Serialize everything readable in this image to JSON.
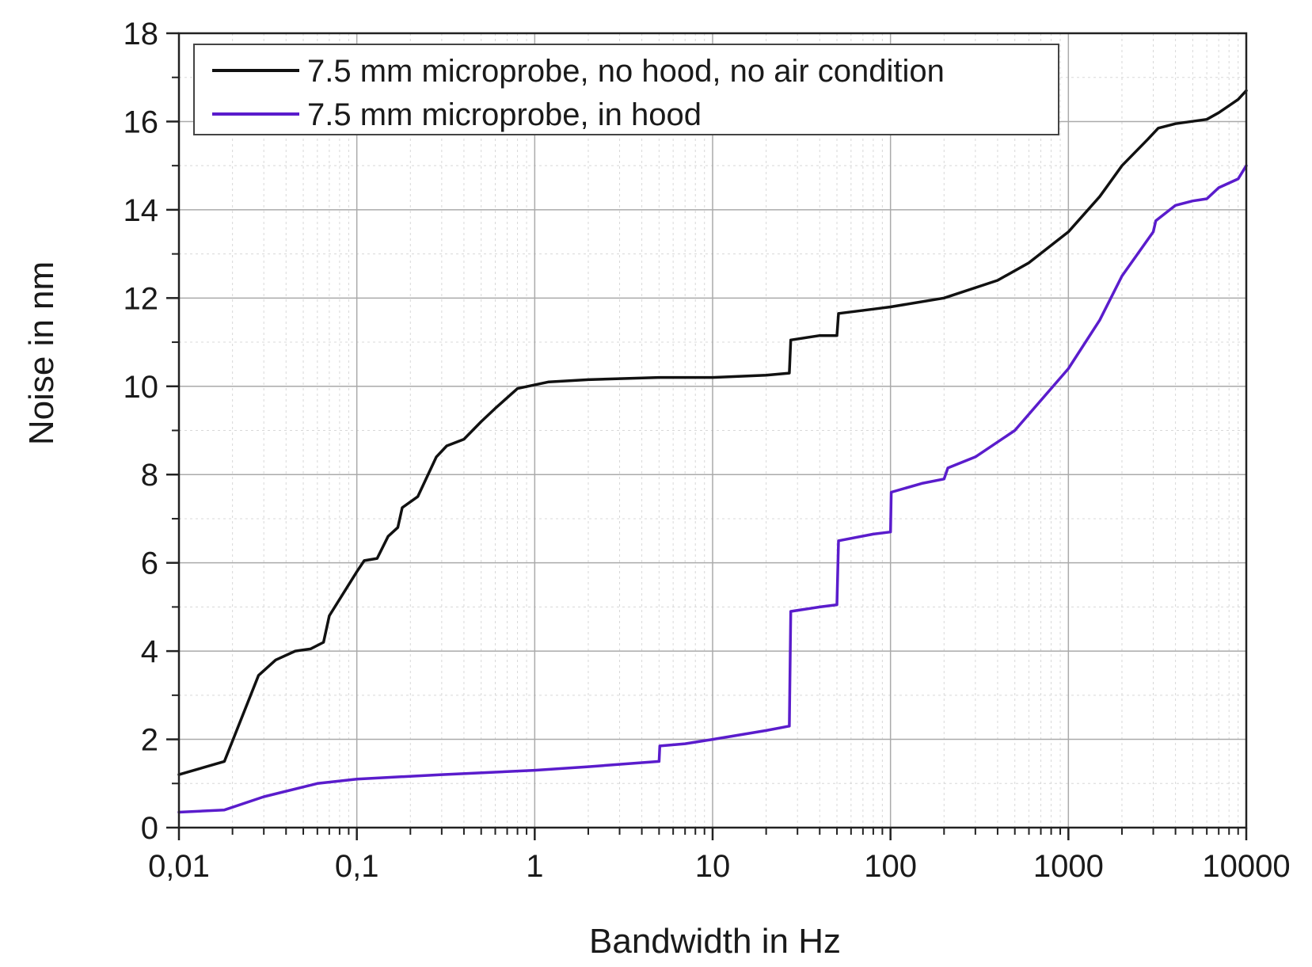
{
  "chart_data": {
    "type": "line",
    "x_scale": "log",
    "xlabel": "Bandwidth in Hz",
    "ylabel": "Noise in nm",
    "xlim": [
      0.01,
      10000
    ],
    "ylim": [
      0,
      18
    ],
    "x_ticks": [
      {
        "value": 0.01,
        "label": "0,01"
      },
      {
        "value": 0.1,
        "label": "0,1"
      },
      {
        "value": 1,
        "label": "1"
      },
      {
        "value": 10,
        "label": "10"
      },
      {
        "value": 100,
        "label": "100"
      },
      {
        "value": 1000,
        "label": "1000"
      },
      {
        "value": 10000,
        "label": "10000"
      }
    ],
    "y_ticks": [
      {
        "value": 0,
        "label": "0"
      },
      {
        "value": 2,
        "label": "2"
      },
      {
        "value": 4,
        "label": "4"
      },
      {
        "value": 6,
        "label": "6"
      },
      {
        "value": 8,
        "label": "8"
      },
      {
        "value": 10,
        "label": "10"
      },
      {
        "value": 12,
        "label": "12"
      },
      {
        "value": 14,
        "label": "14"
      },
      {
        "value": 16,
        "label": "16"
      },
      {
        "value": 18,
        "label": "18"
      }
    ],
    "grid": true,
    "legend_position": "top-left",
    "series": [
      {
        "name": "7.5 mm microprobe, no hood, no air condition",
        "color": "#111111",
        "points": [
          [
            0.01,
            1.2
          ],
          [
            0.018,
            1.5
          ],
          [
            0.028,
            3.45
          ],
          [
            0.035,
            3.8
          ],
          [
            0.045,
            4.0
          ],
          [
            0.055,
            4.05
          ],
          [
            0.065,
            4.2
          ],
          [
            0.07,
            4.8
          ],
          [
            0.1,
            5.8
          ],
          [
            0.11,
            6.05
          ],
          [
            0.13,
            6.1
          ],
          [
            0.15,
            6.6
          ],
          [
            0.17,
            6.8
          ],
          [
            0.18,
            7.25
          ],
          [
            0.22,
            7.5
          ],
          [
            0.28,
            8.4
          ],
          [
            0.32,
            8.65
          ],
          [
            0.4,
            8.8
          ],
          [
            0.5,
            9.2
          ],
          [
            0.6,
            9.5
          ],
          [
            0.8,
            9.95
          ],
          [
            1.2,
            10.1
          ],
          [
            2,
            10.15
          ],
          [
            5,
            10.2
          ],
          [
            10,
            10.2
          ],
          [
            20,
            10.25
          ],
          [
            27,
            10.3
          ],
          [
            27.5,
            11.05
          ],
          [
            40,
            11.15
          ],
          [
            50,
            11.15
          ],
          [
            51,
            11.65
          ],
          [
            80,
            11.75
          ],
          [
            100,
            11.8
          ],
          [
            200,
            12.0
          ],
          [
            400,
            12.4
          ],
          [
            600,
            12.8
          ],
          [
            1000,
            13.5
          ],
          [
            1500,
            14.3
          ],
          [
            2000,
            15.0
          ],
          [
            2800,
            15.6
          ],
          [
            3200,
            15.85
          ],
          [
            4000,
            15.95
          ],
          [
            6000,
            16.05
          ],
          [
            7000,
            16.2
          ],
          [
            9000,
            16.5
          ],
          [
            10000,
            16.7
          ]
        ]
      },
      {
        "name": "7.5 mm microprobe, in hood",
        "color": "#5a1ccc",
        "points": [
          [
            0.01,
            0.35
          ],
          [
            0.018,
            0.4
          ],
          [
            0.03,
            0.7
          ],
          [
            0.06,
            1.0
          ],
          [
            0.1,
            1.1
          ],
          [
            0.3,
            1.2
          ],
          [
            1,
            1.3
          ],
          [
            2,
            1.38
          ],
          [
            5,
            1.5
          ],
          [
            5.05,
            1.85
          ],
          [
            7,
            1.9
          ],
          [
            10,
            2.0
          ],
          [
            20,
            2.2
          ],
          [
            27,
            2.3
          ],
          [
            27.5,
            4.9
          ],
          [
            40,
            5.0
          ],
          [
            50,
            5.05
          ],
          [
            51,
            6.5
          ],
          [
            80,
            6.65
          ],
          [
            100,
            6.7
          ],
          [
            101,
            7.6
          ],
          [
            150,
            7.8
          ],
          [
            200,
            7.9
          ],
          [
            210,
            8.15
          ],
          [
            300,
            8.4
          ],
          [
            500,
            9.0
          ],
          [
            1000,
            10.4
          ],
          [
            1500,
            11.5
          ],
          [
            2000,
            12.5
          ],
          [
            3000,
            13.5
          ],
          [
            3100,
            13.75
          ],
          [
            4000,
            14.1
          ],
          [
            5000,
            14.2
          ],
          [
            6000,
            14.25
          ],
          [
            7000,
            14.5
          ],
          [
            9000,
            14.7
          ],
          [
            10000,
            15.0
          ]
        ]
      }
    ]
  }
}
